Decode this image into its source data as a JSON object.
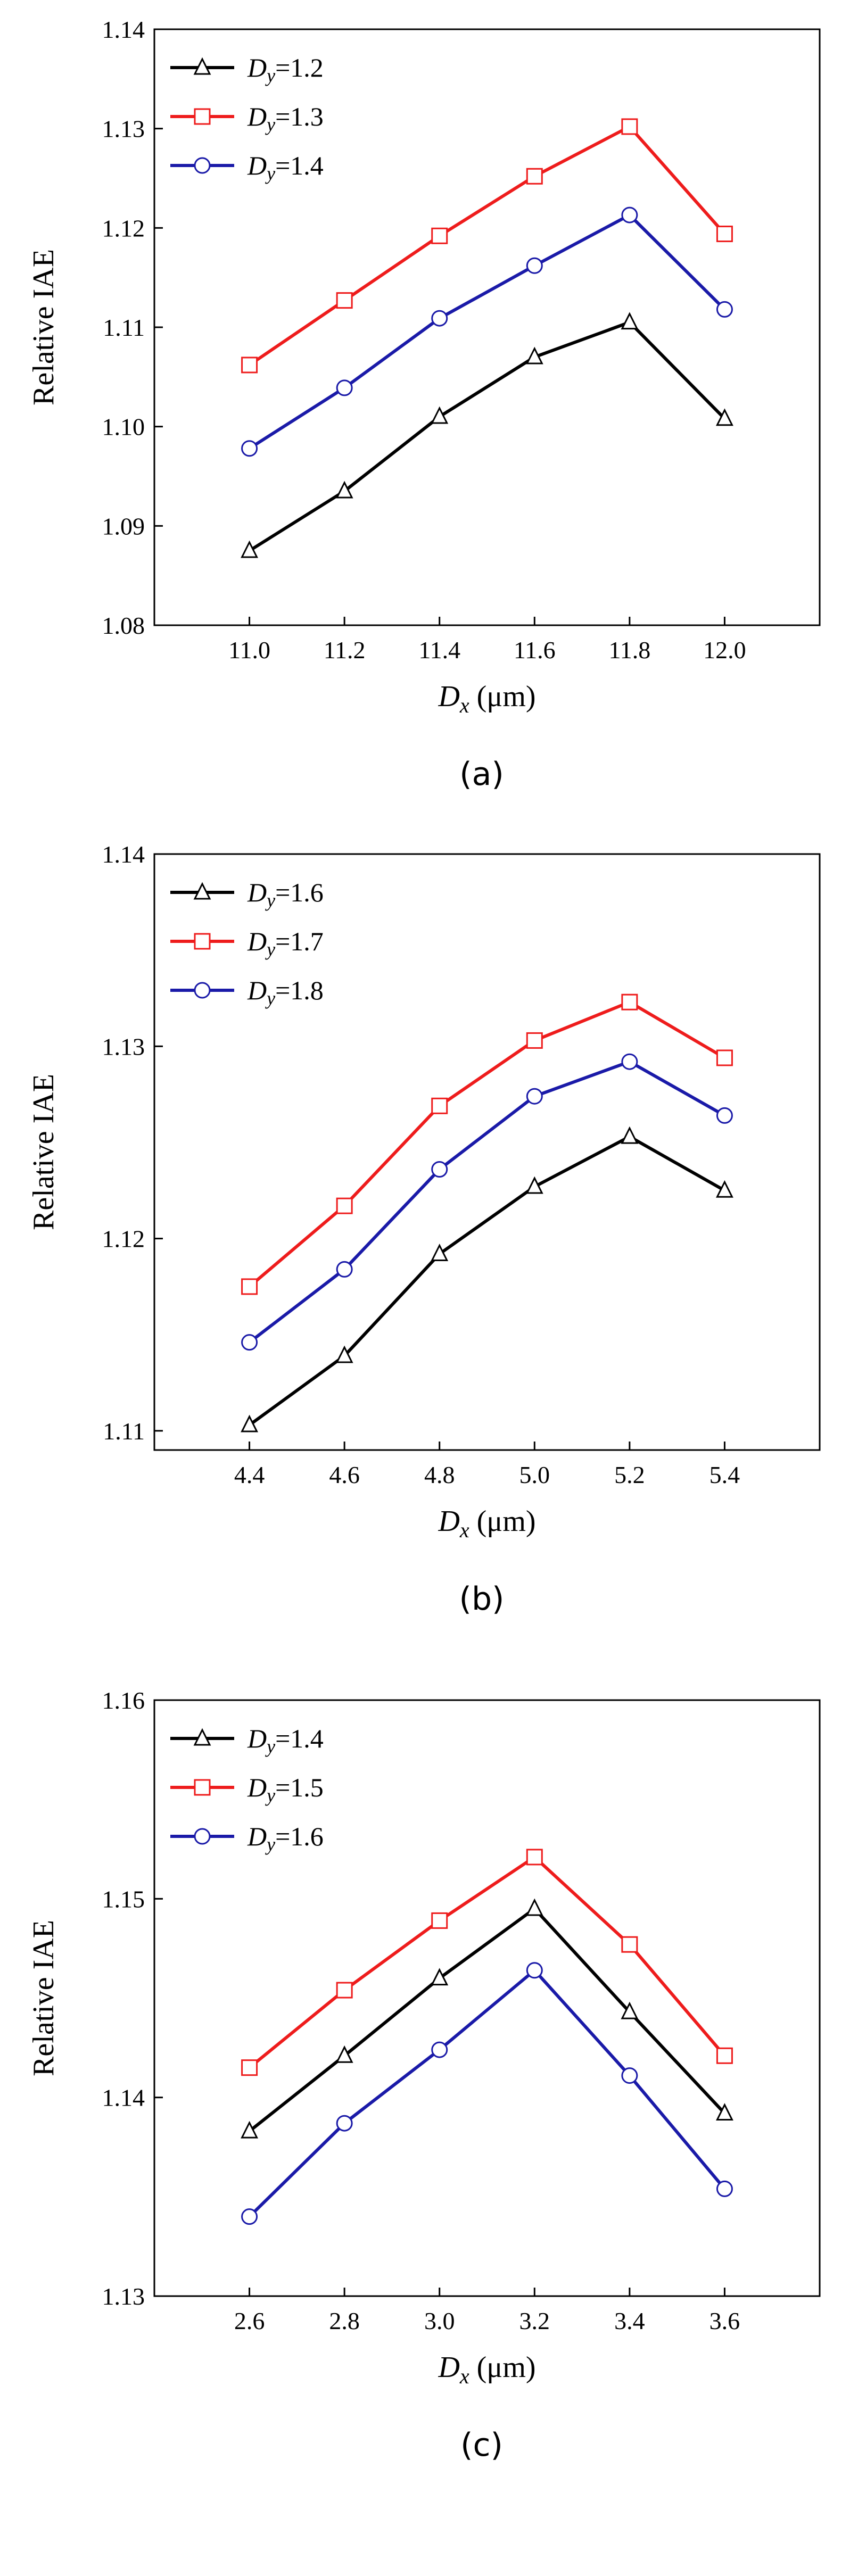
{
  "figure_title": "Relative IAE versus Dx for varying Dy",
  "chart_data": [
    {
      "type": "line",
      "panel_label": "(a)",
      "ylabel": "Relative IAE",
      "xlabel": "Dx (μm)",
      "xlabel_italic": "D",
      "xlabel_sub": "x",
      "xlabel_unit": " (μm)",
      "xlim": [
        10.8,
        12.2
      ],
      "ylim": [
        1.08,
        1.14
      ],
      "x_ticks": [
        11.0,
        11.2,
        11.4,
        11.6,
        11.8,
        12.0
      ],
      "x_tick_labels": [
        "11.0",
        "11.2",
        "11.4",
        "11.6",
        "11.8",
        "12.0"
      ],
      "y_ticks": [
        1.08,
        1.09,
        1.1,
        1.11,
        1.12,
        1.13,
        1.14
      ],
      "y_tick_labels": [
        "1.08",
        "1.09",
        "1.10",
        "1.11",
        "1.12",
        "1.13",
        "1.14"
      ],
      "x": [
        11.0,
        11.2,
        11.4,
        11.6,
        11.8,
        12.0
      ],
      "legend_position": "top-left",
      "series": [
        {
          "name": "Dy=1.2",
          "name_italic": "D",
          "name_sub": "y",
          "name_value": "=1.2",
          "color": "#000000",
          "marker": "triangle",
          "values": [
            1.0875,
            1.0935,
            1.101,
            1.107,
            1.1105,
            1.1008
          ]
        },
        {
          "name": "Dy=1.3",
          "name_italic": "D",
          "name_sub": "y",
          "name_value": "=1.3",
          "color": "#ee1c1c",
          "marker": "square",
          "values": [
            1.1062,
            1.1127,
            1.1192,
            1.1252,
            1.1302,
            1.1194
          ]
        },
        {
          "name": "Dy=1.4",
          "name_italic": "D",
          "name_sub": "y",
          "name_value": "=1.4",
          "color": "#1a1aa8",
          "marker": "circle",
          "values": [
            1.0978,
            1.1039,
            1.1109,
            1.1162,
            1.1213,
            1.1118
          ]
        }
      ]
    },
    {
      "type": "line",
      "panel_label": "(b)",
      "ylabel": "Relative IAE",
      "xlabel": "Dx (μm)",
      "xlabel_italic": "D",
      "xlabel_sub": "x",
      "xlabel_unit": " (μm)",
      "xlim": [
        4.2,
        5.6
      ],
      "ylim": [
        1.109,
        1.14
      ],
      "x_ticks": [
        4.4,
        4.6,
        4.8,
        5.0,
        5.2,
        5.4
      ],
      "x_tick_labels": [
        "4.4",
        "4.6",
        "4.8",
        "5.0",
        "5.2",
        "5.4"
      ],
      "y_ticks": [
        1.11,
        1.12,
        1.13,
        1.14
      ],
      "y_tick_labels": [
        "1.11",
        "1.12",
        "1.13",
        "1.14"
      ],
      "x": [
        4.4,
        4.6,
        4.8,
        5.0,
        5.2,
        5.4
      ],
      "legend_position": "top-left",
      "series": [
        {
          "name": "Dy=1.6",
          "name_italic": "D",
          "name_sub": "y",
          "name_value": "=1.6",
          "color": "#000000",
          "marker": "triangle",
          "values": [
            1.1103,
            1.1139,
            1.1192,
            1.1227,
            1.1253,
            1.1225
          ]
        },
        {
          "name": "Dy=1.7",
          "name_italic": "D",
          "name_sub": "y",
          "name_value": "=1.7",
          "color": "#ee1c1c",
          "marker": "square",
          "values": [
            1.1175,
            1.1217,
            1.1269,
            1.1303,
            1.1323,
            1.1294
          ]
        },
        {
          "name": "Dy=1.8",
          "name_italic": "D",
          "name_sub": "y",
          "name_value": "=1.8",
          "color": "#1a1aa8",
          "marker": "circle",
          "values": [
            1.1146,
            1.1184,
            1.1236,
            1.1274,
            1.1292,
            1.1264
          ]
        }
      ]
    },
    {
      "type": "line",
      "panel_label": "(c)",
      "ylabel": "Relative IAE",
      "xlabel": "Dx (μm)",
      "xlabel_italic": "D",
      "xlabel_sub": "x",
      "xlabel_unit": " (μm)",
      "xlim": [
        2.4,
        3.8
      ],
      "ylim": [
        1.13,
        1.16
      ],
      "x_ticks": [
        2.6,
        2.8,
        3.0,
        3.2,
        3.4,
        3.6
      ],
      "x_tick_labels": [
        "2.6",
        "2.8",
        "3.0",
        "3.2",
        "3.4",
        "3.6"
      ],
      "y_ticks": [
        1.13,
        1.14,
        1.15,
        1.16
      ],
      "y_tick_labels": [
        "1.13",
        "1.14",
        "1.15",
        "1.16"
      ],
      "x": [
        2.6,
        2.8,
        3.0,
        3.2,
        3.4,
        3.6
      ],
      "legend_position": "top-left",
      "series": [
        {
          "name": "Dy=1.4",
          "name_italic": "D",
          "name_sub": "y",
          "name_value": "=1.4",
          "color": "#000000",
          "marker": "triangle",
          "values": [
            1.1383,
            1.1421,
            1.146,
            1.1495,
            1.1443,
            1.1392
          ]
        },
        {
          "name": "Dy=1.5",
          "name_italic": "D",
          "name_sub": "y",
          "name_value": "=1.5",
          "color": "#ee1c1c",
          "marker": "square",
          "values": [
            1.1415,
            1.1454,
            1.1489,
            1.1521,
            1.1477,
            1.1421
          ]
        },
        {
          "name": "Dy=1.6",
          "name_italic": "D",
          "name_sub": "y",
          "name_value": "=1.6",
          "color": "#1a1aa8",
          "marker": "circle",
          "values": [
            1.134,
            1.1387,
            1.1424,
            1.1464,
            1.1411,
            1.1354
          ]
        }
      ]
    }
  ]
}
